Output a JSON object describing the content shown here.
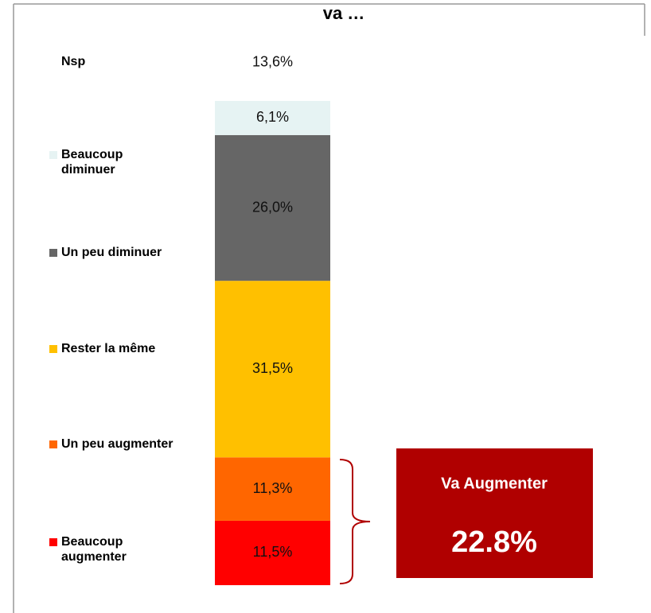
{
  "chart_data": {
    "type": "bar",
    "stacked": true,
    "title": "va …",
    "ylim": [
      0,
      100
    ],
    "series": [
      {
        "name": "Beaucoup augmenter",
        "color": "#ff0000",
        "values": [
          11.5
        ],
        "value_labels": [
          "11,5%"
        ]
      },
      {
        "name": "Un peu augmenter",
        "color": "#ff6600",
        "values": [
          11.3
        ],
        "value_labels": [
          "11,3%"
        ]
      },
      {
        "name": "Rester la même",
        "color": "#ffc000",
        "values": [
          31.5
        ],
        "value_labels": [
          "31,5%"
        ]
      },
      {
        "name": "Un peu diminuer",
        "color": "#666666",
        "values": [
          26.0
        ],
        "value_labels": [
          "26,0%"
        ]
      },
      {
        "name": "Beaucoup diminuer",
        "color": "#e6f3f3",
        "values": [
          6.1
        ],
        "value_labels": [
          "6,1%"
        ]
      },
      {
        "name": "Nsp",
        "color": "#ffffff",
        "values": [
          13.6
        ],
        "value_labels": [
          "13,6%"
        ]
      }
    ],
    "annotation": {
      "label": "Va Augmenter",
      "value": "22.8%",
      "color": "#b00000"
    }
  }
}
